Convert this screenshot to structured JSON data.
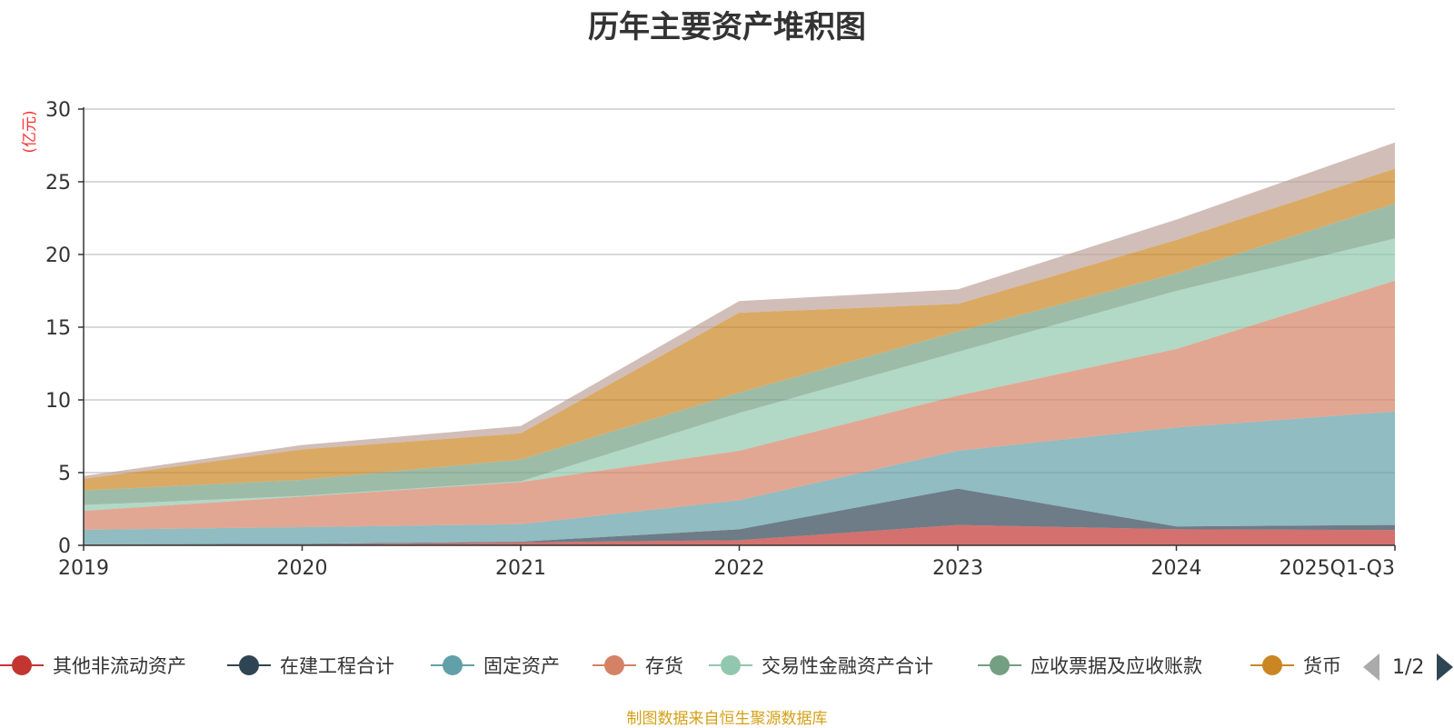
{
  "chart_data": {
    "type": "area",
    "stacked": true,
    "title": "历年主要资产堆积图",
    "ylabel": "(亿元)",
    "xlabel": "",
    "ylim": [
      0,
      30
    ],
    "yticks": [
      0,
      5,
      10,
      15,
      20,
      25,
      30
    ],
    "categories": [
      "2019",
      "2020",
      "2021",
      "2022",
      "2023",
      "2024",
      "2025Q1-Q3"
    ],
    "series": [
      {
        "name": "其他非流动资产",
        "color": "#c23531",
        "values": [
          0.05,
          0.05,
          0.2,
          0.35,
          1.4,
          1.1,
          1.05
        ]
      },
      {
        "name": "在建工程合计",
        "color": "#2f4554",
        "values": [
          0.02,
          0.05,
          0.05,
          0.75,
          2.5,
          0.2,
          0.35
        ]
      },
      {
        "name": "固定资产",
        "color": "#61a0a8",
        "values": [
          1.0,
          1.15,
          1.2,
          2.0,
          2.6,
          6.8,
          7.8
        ]
      },
      {
        "name": "存货",
        "color": "#d48265",
        "values": [
          1.3,
          2.1,
          2.9,
          3.4,
          3.8,
          5.4,
          9.0
        ]
      },
      {
        "name": "交易性金融资产合计",
        "color": "#91c7ae",
        "values": [
          0.4,
          0.05,
          0.05,
          2.6,
          3.0,
          4.0,
          2.9
        ]
      },
      {
        "name": "应收票据及应收账款",
        "color": "#749f83",
        "values": [
          1.0,
          1.1,
          1.5,
          1.4,
          1.4,
          1.2,
          2.4
        ]
      },
      {
        "name": "货币",
        "color": "#ca8622",
        "values": [
          0.8,
          2.1,
          1.8,
          5.5,
          1.9,
          2.3,
          2.4
        ]
      },
      {
        "name": "",
        "color": "#bda29a",
        "values": [
          0.2,
          0.3,
          0.5,
          0.8,
          1.0,
          1.4,
          1.8
        ]
      }
    ]
  },
  "legend": {
    "items": [
      {
        "label": "其他非流动资产",
        "color": "#c23531"
      },
      {
        "label": "在建工程合计",
        "color": "#2f4554"
      },
      {
        "label": "固定资产",
        "color": "#61a0a8"
      },
      {
        "label": "存货",
        "color": "#d48265"
      },
      {
        "label": "交易性金融资产合计",
        "color": "#91c7ae"
      },
      {
        "label": "应收票据及应收账款",
        "color": "#749f83"
      },
      {
        "label": "货币",
        "color": "#ca8622"
      }
    ],
    "page_text": "1/2"
  },
  "source_note": "制图数据来自恒生聚源数据库"
}
